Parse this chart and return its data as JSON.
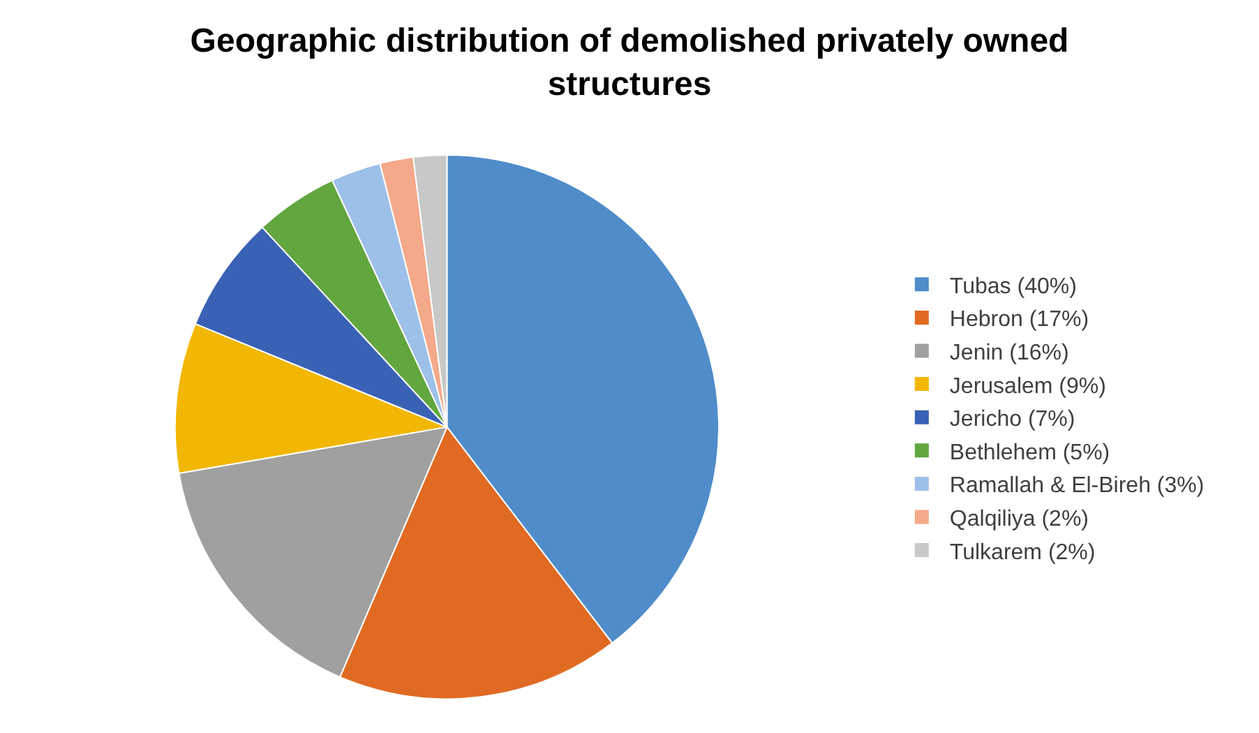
{
  "chart_data": {
    "type": "pie",
    "title": "Geographic distribution of demolished privately owned structures",
    "categories": [
      "Tubas (40%)",
      "Hebron (17%)",
      "Jenin (16%)",
      "Jerusalem (9%)",
      "Jericho (7%)",
      "Bethlehem (5%)",
      "Ramallah & El-Bireh (3%)",
      "Qalqiliya (2%)",
      "Tulkarem (2%)"
    ],
    "values": [
      40,
      17,
      16,
      9,
      7,
      5,
      3,
      2,
      2
    ],
    "colors": [
      "#4f8cc9",
      "#e06a22",
      "#a0a0a0",
      "#f2b705",
      "#3a62b4",
      "#62a63f",
      "#9dc0e8",
      "#f4a98a",
      "#c8c8c8"
    ],
    "legend": "right"
  }
}
